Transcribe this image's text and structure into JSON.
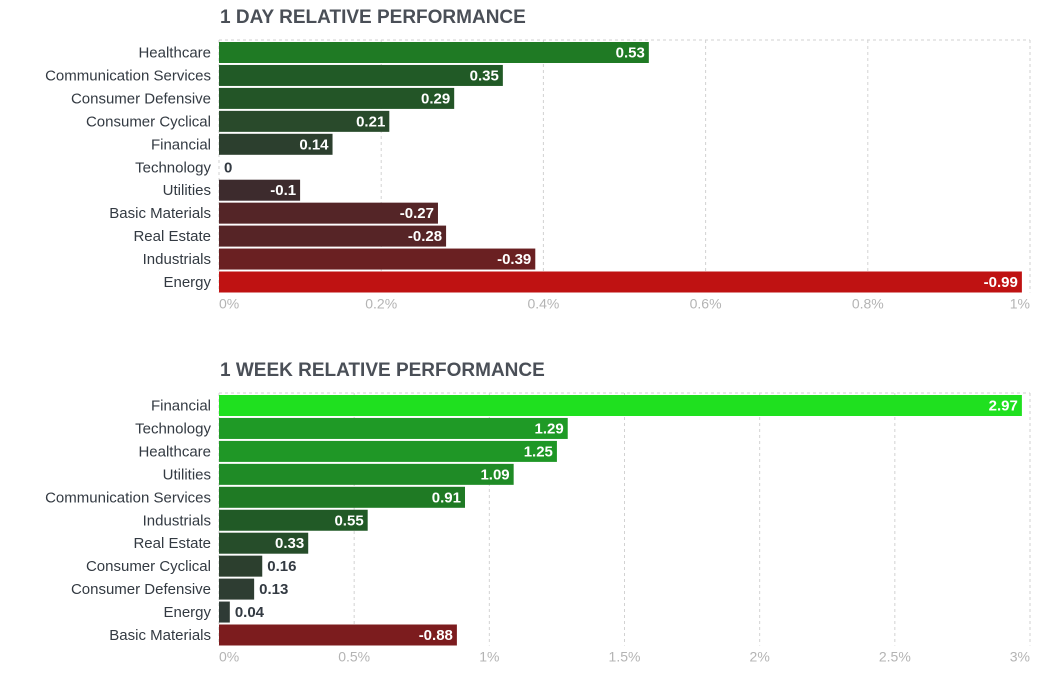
{
  "chart_data": [
    {
      "type": "bar",
      "orientation": "horizontal",
      "title": "1 DAY RELATIVE PERFORMANCE",
      "categories": [
        "Healthcare",
        "Communication Services",
        "Consumer Defensive",
        "Consumer Cyclical",
        "Financial",
        "Technology",
        "Utilities",
        "Basic Materials",
        "Real Estate",
        "Industrials",
        "Energy"
      ],
      "values": [
        0.53,
        0.35,
        0.29,
        0.21,
        0.14,
        0,
        -0.1,
        -0.27,
        -0.28,
        -0.39,
        -0.99
      ],
      "value_labels": [
        "0.53",
        "0.35",
        "0.29",
        "0.21",
        "0.14",
        "0",
        "-0.1",
        "-0.27",
        "-0.28",
        "-0.39",
        "-0.99"
      ],
      "bar_length": "absolute value",
      "colors": [
        "#1f7a24",
        "#215a26",
        "#235527",
        "#294a2b",
        "#2c3f2e",
        "#2f3b36",
        "#3d2b2d",
        "#542527",
        "#562426",
        "#6a2022",
        "#bf1212"
      ],
      "xlim": [
        0,
        1
      ],
      "xticks": [
        "0%",
        "0.2%",
        "0.4%",
        "0.6%",
        "0.8%",
        "1%"
      ],
      "grid": true
    },
    {
      "type": "bar",
      "orientation": "horizontal",
      "title": "1 WEEK RELATIVE PERFORMANCE",
      "categories": [
        "Financial",
        "Technology",
        "Healthcare",
        "Utilities",
        "Communication Services",
        "Industrials",
        "Real Estate",
        "Consumer Cyclical",
        "Consumer Defensive",
        "Energy",
        "Basic Materials"
      ],
      "values": [
        2.97,
        1.29,
        1.25,
        1.09,
        0.91,
        0.55,
        0.33,
        0.16,
        0.13,
        0.04,
        -0.88
      ],
      "value_labels": [
        "2.97",
        "1.29",
        "1.25",
        "1.09",
        "0.91",
        "0.55",
        "0.33",
        "0.16",
        "0.13",
        "0.04",
        "-0.88"
      ],
      "bar_length": "absolute value",
      "colors": [
        "#1fe01f",
        "#1f9a26",
        "#1f9726",
        "#1f8b26",
        "#1f7a24",
        "#215a26",
        "#264d2a",
        "#2c3f2e",
        "#2e3d32",
        "#2f3b36",
        "#7c1c1e"
      ],
      "xlim": [
        0,
        3
      ],
      "xticks": [
        "0%",
        "0.5%",
        "1%",
        "1.5%",
        "2%",
        "2.5%",
        "3%"
      ],
      "grid": true
    }
  ]
}
